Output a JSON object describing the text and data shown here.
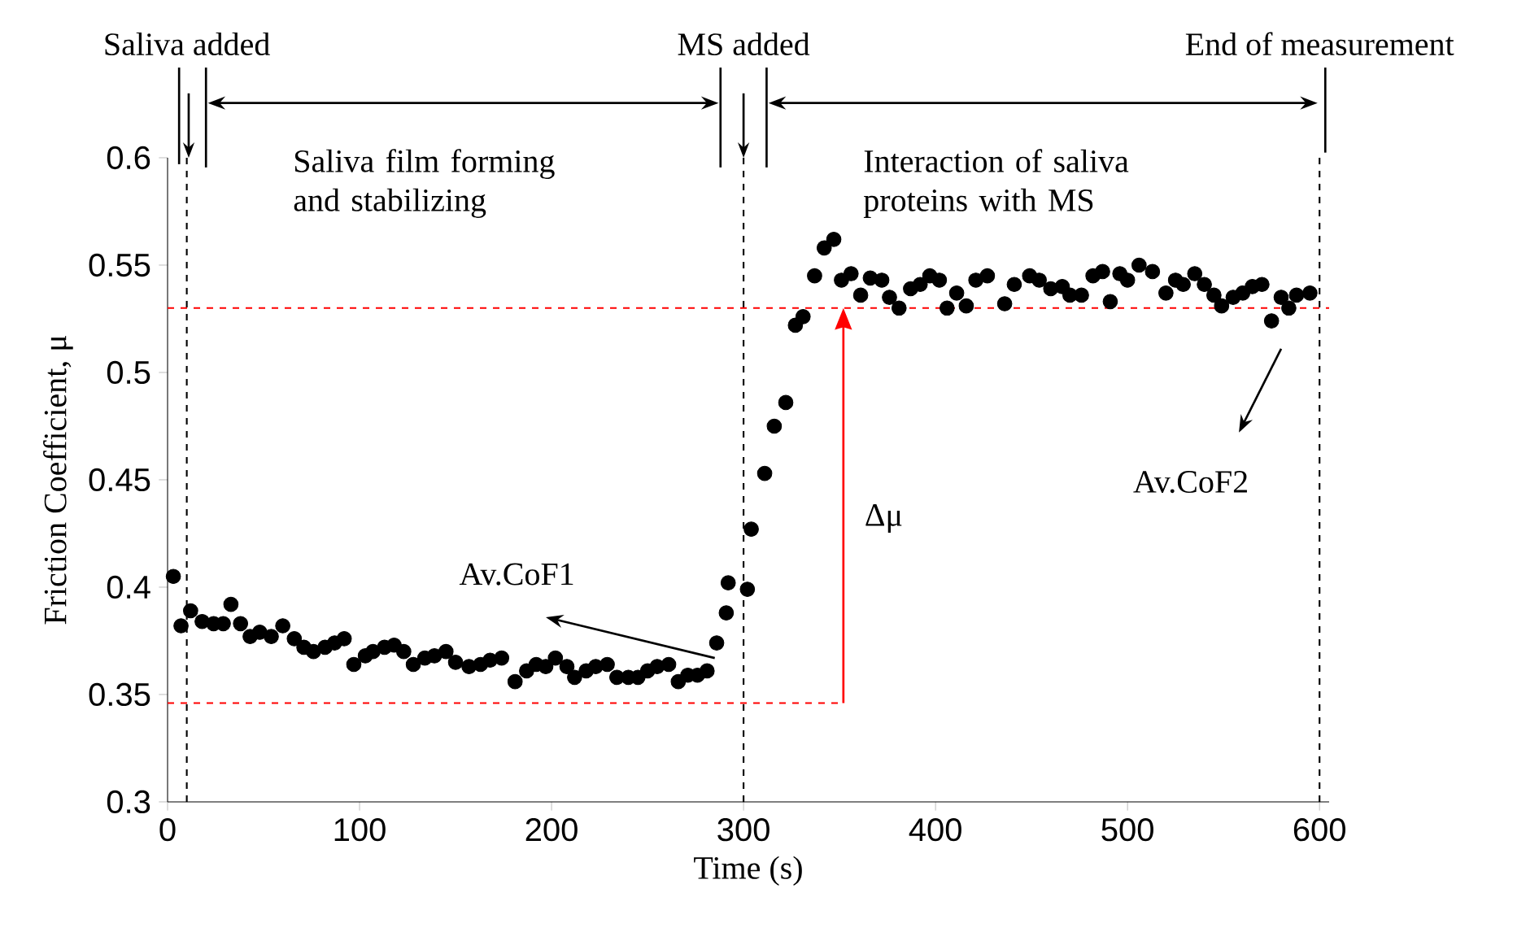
{
  "chart_data": {
    "type": "scatter",
    "xlabel": "Time (s)",
    "ylabel": "Friction Coefficient, μ",
    "x": [
      3,
      7,
      12,
      18,
      24,
      29,
      33,
      38,
      43,
      48,
      54,
      60,
      66,
      71,
      76,
      82,
      87,
      92,
      97,
      103,
      107,
      113,
      118,
      123,
      128,
      134,
      139,
      145,
      150,
      157,
      163,
      168,
      174,
      181,
      187,
      192,
      197,
      202,
      208,
      212,
      218,
      223,
      229,
      234,
      240,
      245,
      250,
      255,
      261,
      266,
      271,
      276,
      281,
      286,
      291,
      292,
      302,
      304,
      311,
      316,
      322,
      327,
      331,
      337,
      342,
      347,
      351,
      356,
      361,
      366,
      372,
      376,
      381,
      387,
      392,
      397,
      402,
      406,
      411,
      416,
      421,
      427,
      436,
      441,
      449,
      454,
      460,
      466,
      470,
      476,
      482,
      487,
      491,
      496,
      500,
      506,
      513,
      520,
      525,
      529,
      535,
      540,
      545,
      549,
      555,
      560,
      565,
      570,
      575,
      580,
      584,
      588,
      595
    ],
    "series": [
      {
        "color": "#000000",
        "values": [
          0.405,
          0.382,
          0.389,
          0.384,
          0.383,
          0.383,
          0.392,
          0.383,
          0.377,
          0.379,
          0.377,
          0.382,
          0.376,
          0.372,
          0.37,
          0.372,
          0.374,
          0.376,
          0.364,
          0.368,
          0.37,
          0.372,
          0.373,
          0.37,
          0.364,
          0.367,
          0.368,
          0.37,
          0.365,
          0.363,
          0.364,
          0.366,
          0.367,
          0.356,
          0.361,
          0.364,
          0.363,
          0.367,
          0.363,
          0.358,
          0.361,
          0.363,
          0.364,
          0.358,
          0.358,
          0.358,
          0.361,
          0.363,
          0.364,
          0.356,
          0.359,
          0.359,
          0.361,
          0.374,
          0.388,
          0.402,
          0.399,
          0.427,
          0.453,
          0.475,
          0.486,
          0.522,
          0.526,
          0.545,
          0.558,
          0.562,
          0.543,
          0.546,
          0.536,
          0.544,
          0.543,
          0.535,
          0.53,
          0.539,
          0.541,
          0.545,
          0.543,
          0.53,
          0.537,
          0.531,
          0.543,
          0.545,
          0.532,
          0.541,
          0.545,
          0.543,
          0.539,
          0.54,
          0.536,
          0.536,
          0.545,
          0.547,
          0.533,
          0.546,
          0.543,
          0.55,
          0.547,
          0.537,
          0.543,
          0.541,
          0.546,
          0.541,
          0.536,
          0.531,
          0.535,
          0.537,
          0.54,
          0.541,
          0.524,
          0.535,
          0.53,
          0.536,
          0.537
        ]
      }
    ],
    "xlim": [
      0,
      605
    ],
    "ylim": [
      0.3,
      0.6
    ],
    "xticks": [
      0,
      100,
      200,
      300,
      400,
      500,
      600
    ],
    "yticks": [
      0.3,
      0.35,
      0.4,
      0.45,
      0.5,
      0.55,
      0.6
    ],
    "marker": "circle",
    "grid": false,
    "ref_lines": [
      {
        "axis": "x",
        "value": 10,
        "label": "Saliva added",
        "color": "#000000",
        "line_style": "dashed"
      },
      {
        "axis": "x",
        "value": 300,
        "label": "MS added",
        "color": "#000000",
        "line_style": "dashed"
      },
      {
        "axis": "x",
        "value": 600,
        "label": "End of measurement",
        "color": "#000000",
        "line_style": "dashed"
      },
      {
        "axis": "y",
        "value": 0.53,
        "color": "#ff0000",
        "line_style": "dashed"
      },
      {
        "axis": "y",
        "value": 0.346,
        "color": "#ff0000",
        "line_style": "dashed"
      }
    ],
    "annotations": [
      "Saliva film forming and stabilizing",
      "Interaction of saliva proteins with MS",
      "Δμ",
      "Av.CoF1",
      "Av.CoF2"
    ]
  }
}
